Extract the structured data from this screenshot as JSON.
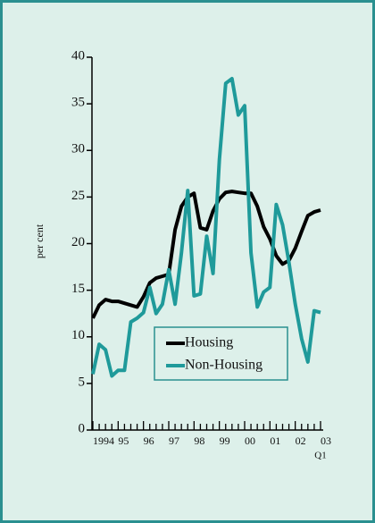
{
  "chart_data": {
    "type": "line",
    "y_label": "per cent",
    "x_annotation": "Q1",
    "categories": [
      "1994",
      null,
      null,
      null,
      "95",
      null,
      null,
      null,
      "96",
      null,
      null,
      null,
      "97",
      null,
      null,
      null,
      "98",
      null,
      null,
      null,
      "99",
      null,
      null,
      null,
      "00",
      null,
      null,
      null,
      "01",
      null,
      null,
      null,
      "02",
      null,
      null,
      null,
      "03"
    ],
    "series": [
      {
        "name": "Housing",
        "color": "#000000",
        "values": [
          12,
          13.4,
          14,
          13.8,
          13.8,
          13.6,
          13.4,
          13.2,
          14.3,
          15.8,
          16.3,
          16.5,
          16.7,
          21.5,
          24,
          25,
          25.4,
          21.7,
          21.5,
          23.5,
          24.8,
          25.5,
          25.6,
          25.5,
          25.4,
          25.4,
          24,
          21.8,
          20.5,
          18.7,
          17.8,
          18.2,
          19.5,
          21.3,
          23,
          23.4,
          23.6
        ]
      },
      {
        "name": "Non-Housing",
        "color": "#1f9a9a",
        "values": [
          6,
          9.2,
          8.6,
          5.8,
          6.4,
          6.4,
          11.6,
          12,
          12.6,
          15.3,
          12.5,
          13.5,
          17.2,
          13.5,
          19,
          25.7,
          14.4,
          14.6,
          20.8,
          16.8,
          29,
          37.2,
          37.7,
          33.8,
          34.8,
          19,
          13.2,
          14.8,
          15.3,
          24.2,
          22,
          18,
          13.5,
          9.8,
          7.3,
          12.8,
          12.6
        ]
      }
    ],
    "ylim": [
      0,
      40
    ],
    "yticks": [
      0,
      5,
      10,
      15,
      20,
      25,
      30,
      35,
      40
    ]
  }
}
